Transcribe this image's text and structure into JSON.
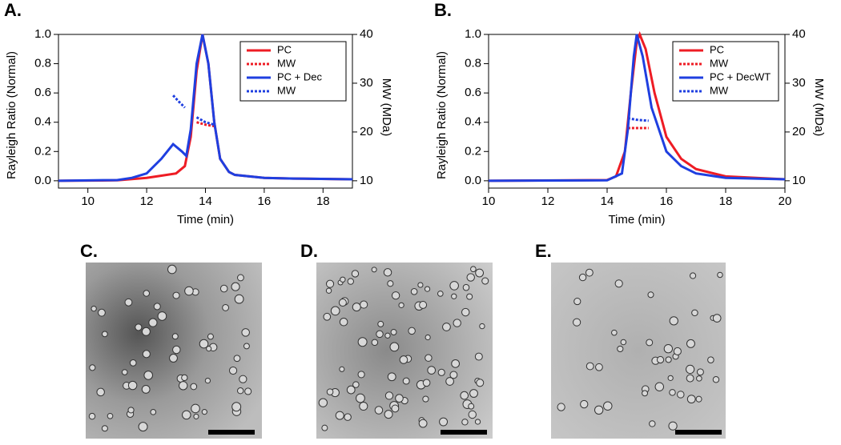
{
  "chart_data": [
    {
      "type": "line",
      "label": "A.",
      "xlabel": "Time (min)",
      "ylabel": "Rayleigh Ratio (Normal)",
      "y2label": "MW (MDa)",
      "xlim": [
        9,
        19
      ],
      "xticks": [
        10,
        12,
        14,
        16,
        18
      ],
      "ylim": [
        -0.05,
        1.0
      ],
      "yticks": [
        {
          "value": 0,
          "label": "0.0"
        },
        {
          "value": 0.2,
          "label": "0.2"
        },
        {
          "value": 0.4,
          "label": "0.4"
        },
        {
          "value": 0.6,
          "label": "0.6"
        },
        {
          "value": 0.8,
          "label": "0.8"
        },
        {
          "value": 1.0,
          "label": "1.0"
        }
      ],
      "y2lim": [
        8.5,
        40
      ],
      "y2ticks": [
        10,
        20,
        30,
        40
      ],
      "legend": "upper right",
      "series": [
        {
          "name": "PC",
          "color": "#ee1c24",
          "style": "solid",
          "x": [
            9,
            11,
            12,
            12.5,
            13,
            13.3,
            13.5,
            13.7,
            13.9,
            14.1,
            14.3,
            14.5,
            14.8,
            15,
            16,
            17,
            19
          ],
          "values": [
            0,
            0.003,
            0.02,
            0.035,
            0.05,
            0.1,
            0.3,
            0.75,
            1.0,
            0.8,
            0.4,
            0.15,
            0.06,
            0.04,
            0.02,
            0.015,
            0.01
          ]
        },
        {
          "name": "MW",
          "color": "#ee1c24",
          "style": "dotted",
          "axis": "y2",
          "x": [
            13.7,
            14.0,
            14.3
          ],
          "values": [
            22,
            21.5,
            21.2
          ]
        },
        {
          "name": "PC + Dec",
          "color": "#1f3fe0",
          "style": "solid",
          "x": [
            9,
            11,
            11.5,
            12,
            12.5,
            12.9,
            13.2,
            13.35,
            13.5,
            13.7,
            13.9,
            14.1,
            14.3,
            14.5,
            14.8,
            15,
            16,
            17,
            19
          ],
          "values": [
            0,
            0.005,
            0.02,
            0.05,
            0.15,
            0.25,
            0.2,
            0.17,
            0.35,
            0.8,
            1.0,
            0.8,
            0.4,
            0.15,
            0.06,
            0.04,
            0.02,
            0.015,
            0.01
          ]
        },
        {
          "name": "MW",
          "color": "#1f3fe0",
          "style": "dotted",
          "axis": "y2",
          "x": [
            12.9,
            13.1,
            13.3,
            13.5,
            13.7,
            14.0,
            14.3
          ],
          "values": [
            27.5,
            26.2,
            25.0,
            null,
            23,
            22,
            21.5
          ]
        }
      ]
    },
    {
      "type": "line",
      "label": "B.",
      "xlabel": "Time (min)",
      "ylabel": "Rayleigh Ratio (Normal)",
      "y2label": "MW (MDa)",
      "xlim": [
        10,
        20
      ],
      "xticks": [
        10,
        12,
        14,
        16,
        18,
        20
      ],
      "ylim": [
        -0.05,
        1.0
      ],
      "yticks": [
        {
          "value": 0,
          "label": "0.0"
        },
        {
          "value": 0.2,
          "label": "0.2"
        },
        {
          "value": 0.4,
          "label": "0.4"
        },
        {
          "value": 0.6,
          "label": "0.6"
        },
        {
          "value": 0.8,
          "label": "0.8"
        },
        {
          "value": 1.0,
          "label": "1.0"
        }
      ],
      "y2lim": [
        8.5,
        40
      ],
      "y2ticks": [
        10,
        20,
        30,
        40
      ],
      "legend": "upper right",
      "series": [
        {
          "name": "PC",
          "color": "#ee1c24",
          "style": "solid",
          "x": [
            10,
            14,
            14.3,
            14.6,
            14.8,
            15.0,
            15.1,
            15.3,
            15.6,
            16,
            16.5,
            17,
            18,
            20
          ],
          "values": [
            0,
            0.005,
            0.03,
            0.2,
            0.6,
            0.95,
            1.0,
            0.9,
            0.6,
            0.3,
            0.15,
            0.08,
            0.03,
            0.01
          ]
        },
        {
          "name": "MW",
          "color": "#ee1c24",
          "style": "dotted",
          "axis": "y2",
          "x": [
            14.7,
            15.0,
            15.4
          ],
          "values": [
            20.8,
            20.8,
            20.8
          ]
        },
        {
          "name": "PC + DecWT",
          "color": "#1f3fe0",
          "style": "solid",
          "x": [
            10,
            14,
            14.5,
            14.7,
            14.9,
            15.0,
            15.2,
            15.5,
            16,
            16.5,
            17,
            18,
            20
          ],
          "values": [
            0,
            0.003,
            0.05,
            0.35,
            0.85,
            1.0,
            0.85,
            0.5,
            0.2,
            0.1,
            0.05,
            0.02,
            0.01
          ]
        },
        {
          "name": "MW",
          "color": "#1f3fe0",
          "style": "dotted",
          "axis": "y2",
          "x": [
            14.7,
            15.0,
            15.4
          ],
          "values": [
            22.8,
            22.5,
            22.3
          ]
        }
      ]
    }
  ],
  "panels": [
    {
      "label": "C."
    },
    {
      "label": "D."
    },
    {
      "label": "E."
    }
  ]
}
